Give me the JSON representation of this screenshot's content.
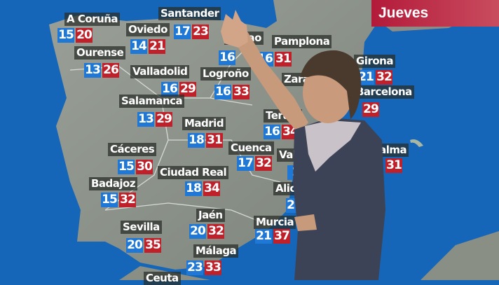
{
  "banner": {
    "day": "Jueves",
    "color": "#c0203a"
  },
  "colors": {
    "min": "#1f78d6",
    "max": "#c0202a",
    "sea": "#1565b8",
    "land": "#8e948c"
  },
  "cities": [
    {
      "name": "A Coruña",
      "min": "15",
      "max": "20"
    },
    {
      "name": "Santander",
      "min": "17",
      "max": "23"
    },
    {
      "name": "Oviedo",
      "min": "14",
      "max": "21"
    },
    {
      "name": "Ourense",
      "min": "13",
      "max": "26"
    },
    {
      "name": "Bilbao",
      "min": "16",
      "max": ""
    },
    {
      "name": "Pamplona",
      "min": "16",
      "max": "31"
    },
    {
      "name": "Valladolid",
      "min": "16",
      "max": "29"
    },
    {
      "name": "Logroño",
      "min": "16",
      "max": "33"
    },
    {
      "name": "Zaragoza",
      "min": "",
      "max": ""
    },
    {
      "name": "Girona",
      "min": "21",
      "max": "32"
    },
    {
      "name": "Barcelona",
      "min": "",
      "max": "29"
    },
    {
      "name": "Salamanca",
      "min": "13",
      "max": "29"
    },
    {
      "name": "Madrid",
      "min": "18",
      "max": "31"
    },
    {
      "name": "Teruel",
      "min": "16",
      "max": "34"
    },
    {
      "name": "Cuenca",
      "min": "17",
      "max": "32"
    },
    {
      "name": "Valencia",
      "min": "2",
      "max": ""
    },
    {
      "name": "Palma",
      "min": "",
      "max": "31"
    },
    {
      "name": "Cáceres",
      "min": "15",
      "max": "30"
    },
    {
      "name": "Ciudad Real",
      "min": "18",
      "max": "34"
    },
    {
      "name": "Badajoz",
      "min": "15",
      "max": "32"
    },
    {
      "name": "Alicante",
      "min": "21",
      "max": ""
    },
    {
      "name": "Sevilla",
      "min": "20",
      "max": "35"
    },
    {
      "name": "Jaén",
      "min": "20",
      "max": "32"
    },
    {
      "name": "Murcia",
      "min": "21",
      "max": "37"
    },
    {
      "name": "Málaga",
      "min": "23",
      "max": "33"
    },
    {
      "name": "Ceuta",
      "min": "",
      "max": ""
    }
  ]
}
